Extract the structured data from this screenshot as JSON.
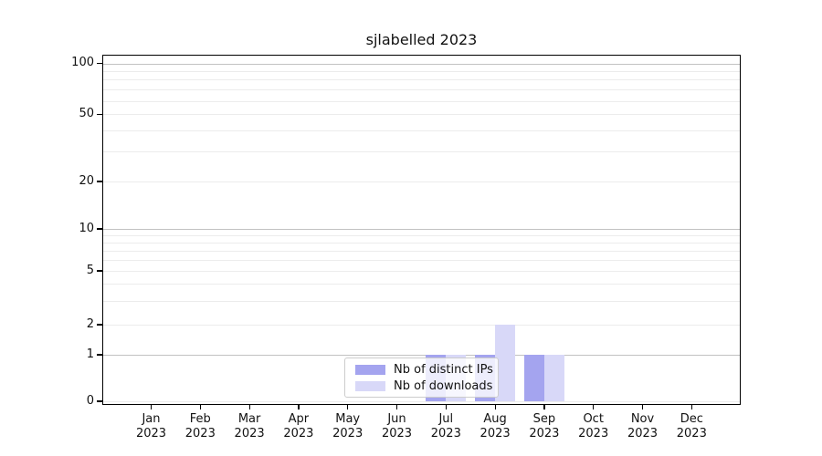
{
  "chart_data": {
    "type": "bar",
    "title": "sjlabelled 2023",
    "months": [
      "Jan",
      "Feb",
      "Mar",
      "Apr",
      "May",
      "Jun",
      "Jul",
      "Aug",
      "Sep",
      "Oct",
      "Nov",
      "Dec"
    ],
    "year_label": "2023",
    "series": [
      {
        "name": "Nb of distinct IPs",
        "color": "#a4a4ef",
        "values": [
          0,
          0,
          0,
          0,
          0,
          0,
          1,
          1,
          1,
          0,
          0,
          0
        ]
      },
      {
        "name": "Nb of downloads",
        "color": "#d8d8f8",
        "values": [
          0,
          0,
          0,
          0,
          0,
          0,
          1,
          2,
          1,
          0,
          0,
          0
        ]
      }
    ],
    "y_ticks": [
      0,
      1,
      2,
      5,
      10,
      20,
      50,
      100
    ],
    "ylim": [
      0,
      100
    ],
    "scale": "symlog",
    "grid": true,
    "legend_position": "bottom-center",
    "colors": {
      "major_grid": "#c2c2c2",
      "minor_grid": "#ececec",
      "axis": "#000000",
      "text": "#111111",
      "background": "#ffffff"
    }
  }
}
